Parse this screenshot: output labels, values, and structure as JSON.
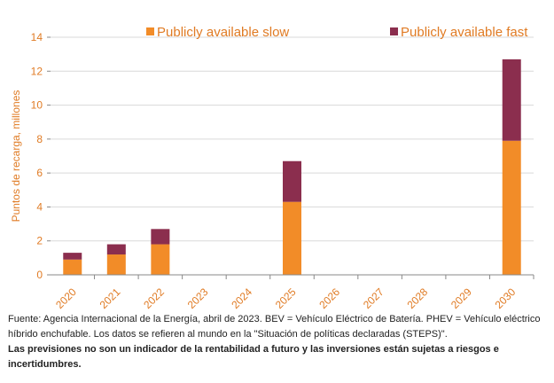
{
  "colors": {
    "slow": "#f28c28",
    "fast": "#8b2e4e",
    "axis_text": "#e07b24",
    "grid": "#d9d9d9"
  },
  "chart_data": {
    "type": "bar",
    "stacked": true,
    "categories": [
      "2020",
      "2021",
      "2022",
      "2023",
      "2024",
      "2025",
      "2026",
      "2027",
      "2028",
      "2029",
      "2030"
    ],
    "series": [
      {
        "name": "Publicly available slow",
        "values": [
          0.9,
          1.2,
          1.8,
          0,
          0,
          4.3,
          0,
          0,
          0,
          0,
          7.9
        ]
      },
      {
        "name": "Publicly available fast",
        "values": [
          0.4,
          0.6,
          0.9,
          0,
          0,
          2.4,
          0,
          0,
          0,
          0,
          4.8
        ]
      }
    ],
    "ylabel": "Puntos de recarga, millones",
    "ylim": [
      0,
      14
    ],
    "yticks": [
      0,
      2,
      4,
      6,
      8,
      10,
      12,
      14
    ],
    "legend_position": "top"
  },
  "caption": {
    "source": "Fuente: Agencia Internacional de la Energía, abril de 2023. BEV = Vehículo Eléctrico de Batería. PHEV = Vehículo eléctrico híbrido enchufable. Los datos se refieren al mundo en la \"Situación de políticas declaradas (STEPS)\".",
    "disclaimer": "Las previsiones no son un indicador de la rentabilidad a futuro y las inversiones están sujetas a riesgos e incertidumbres."
  }
}
